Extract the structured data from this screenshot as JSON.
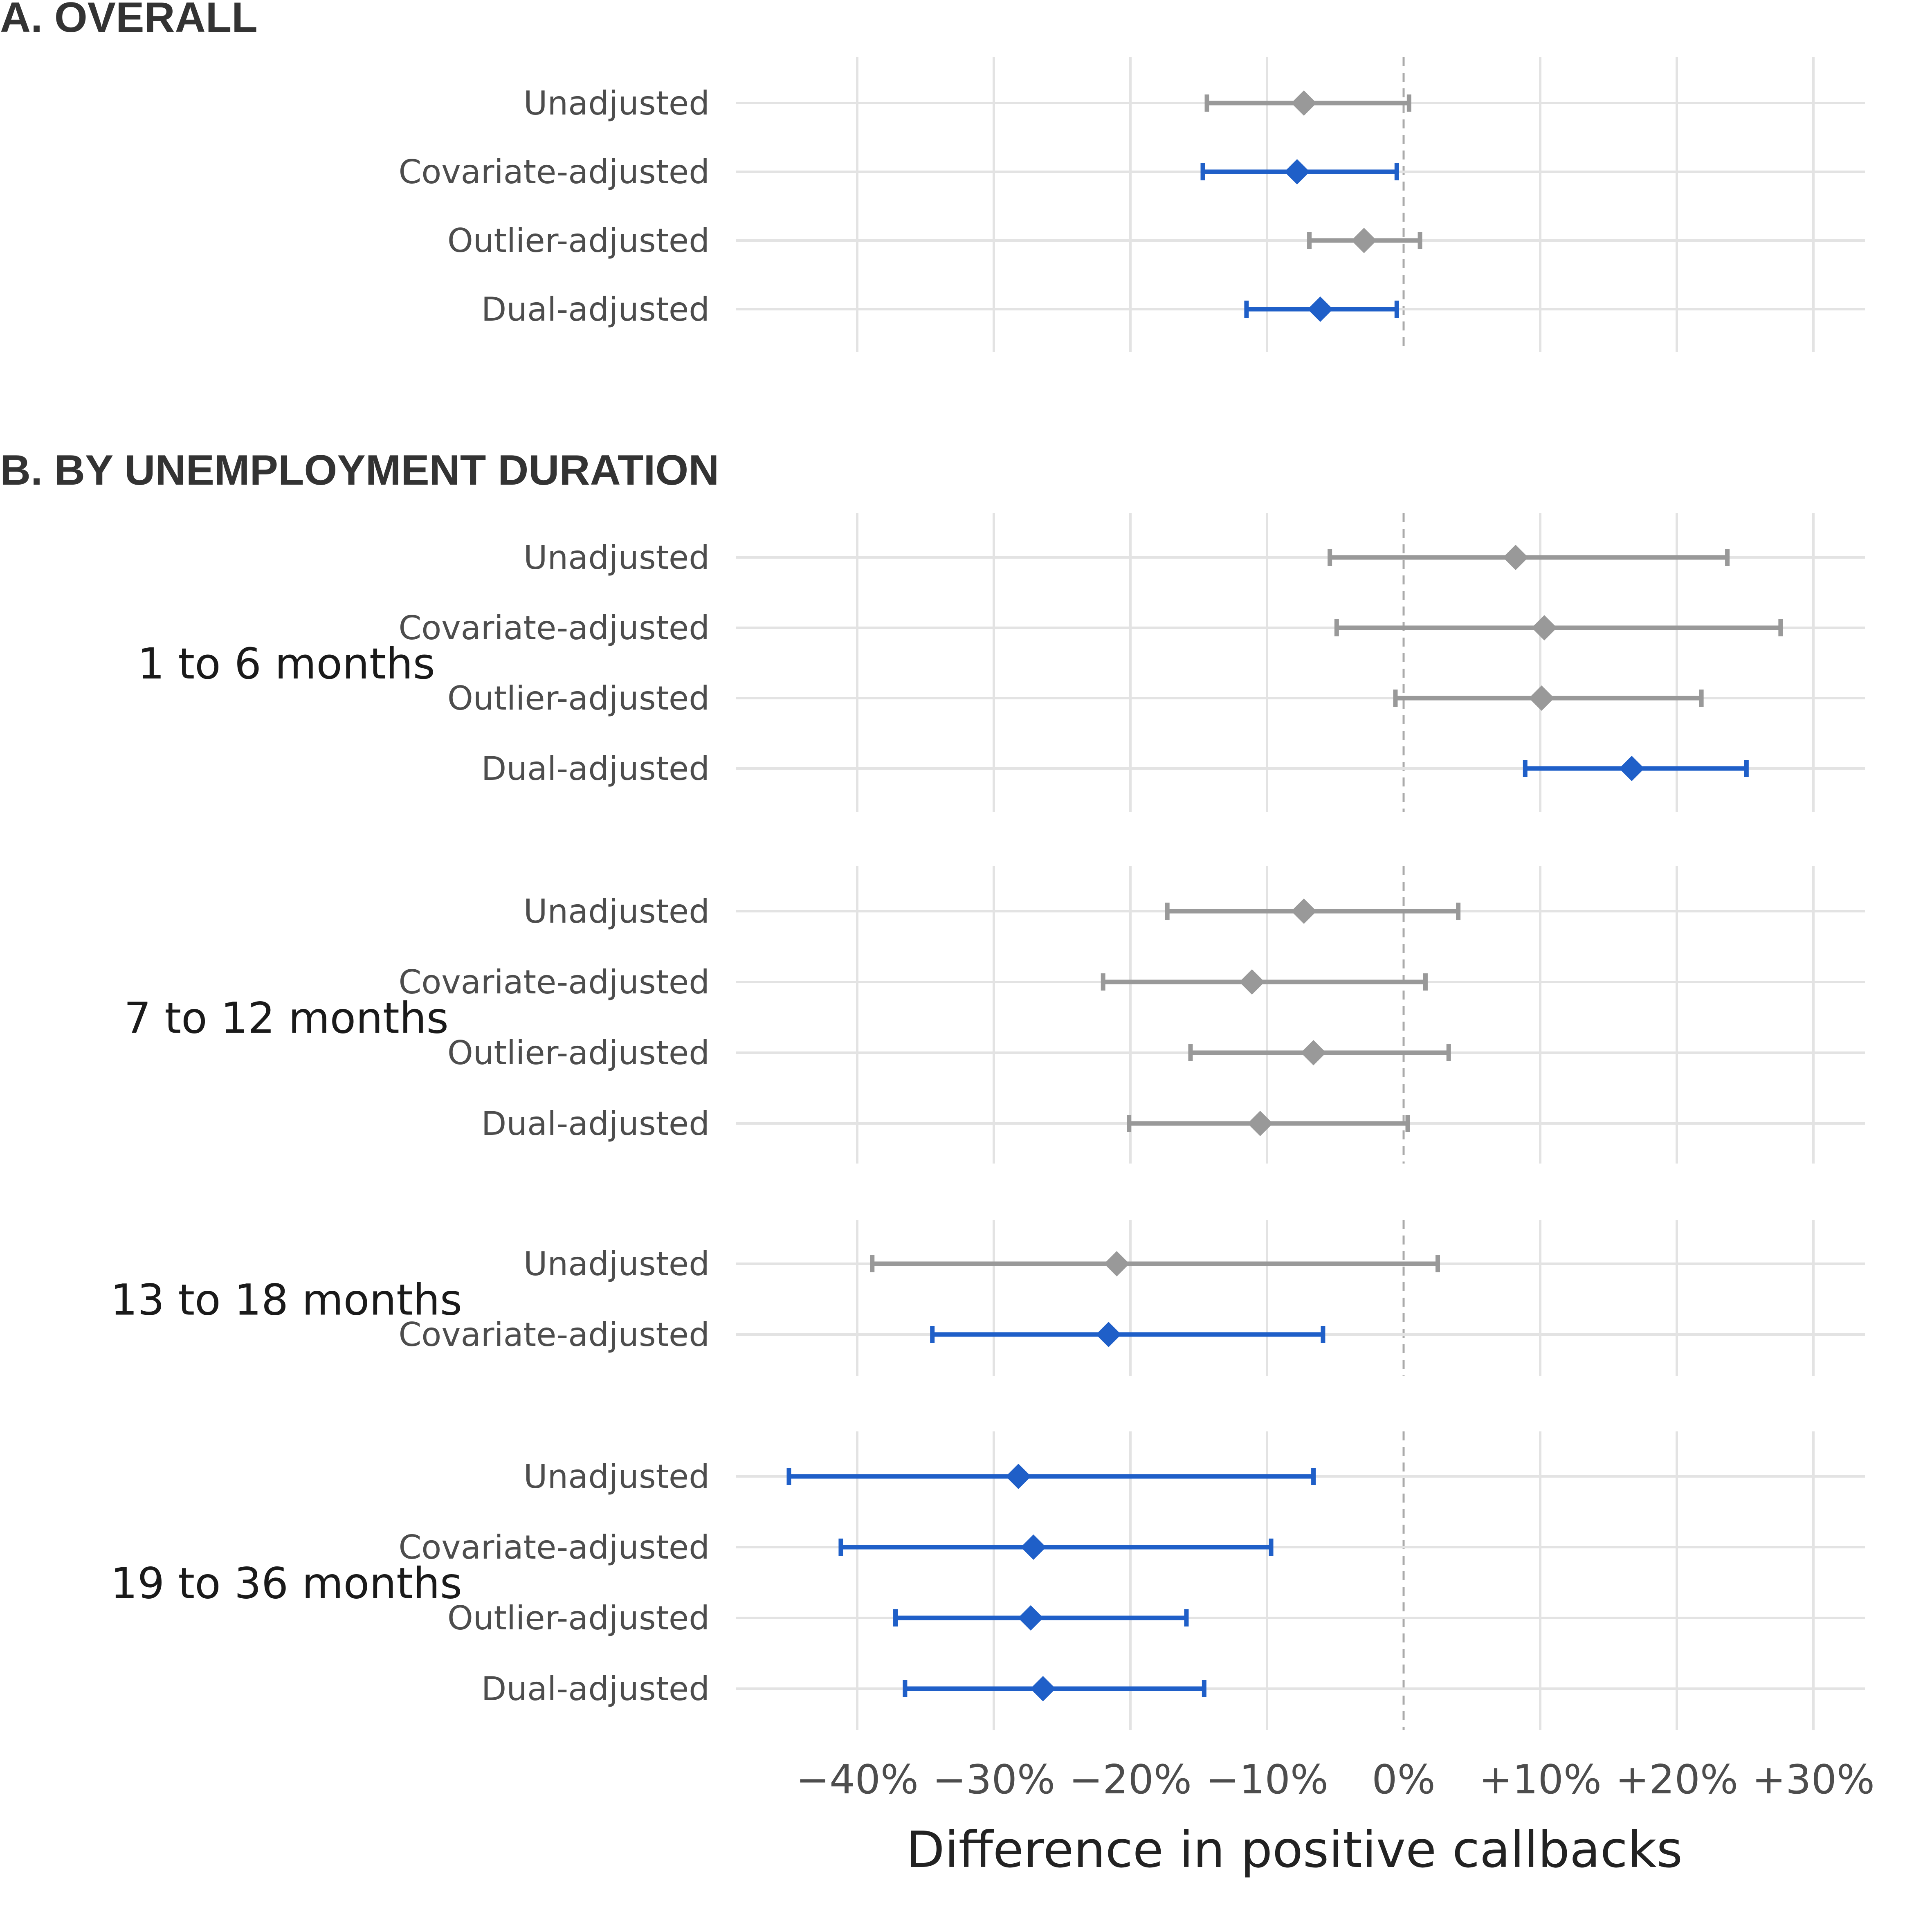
{
  "chart_data": {
    "type": "forest",
    "xlabel": "Difference in positive callbacks",
    "xlim": [
      -49,
      34
    ],
    "x_ticks": [
      -40,
      -30,
      -20,
      -10,
      0,
      10,
      20,
      30
    ],
    "x_tick_labels": [
      "−40%",
      "−30%",
      "−20%",
      "−10%",
      "0%",
      "+10%",
      "+20%",
      "+30%"
    ],
    "reference_line": 0,
    "grid": true,
    "colors": {
      "significant": "#1f5fc8",
      "not_significant": "#999999",
      "grid": "#e3e3e3",
      "reference": "#aaaaaa"
    },
    "sections": [
      {
        "title": "A. OVERALL",
        "panels": [
          {
            "group": "",
            "rows": [
              {
                "label": "Unadjusted",
                "estimate": -7.3,
                "low": -14.4,
                "high": 0.4,
                "significant": false
              },
              {
                "label": "Covariate-adjusted",
                "estimate": -7.8,
                "low": -14.7,
                "high": -0.5,
                "significant": true
              },
              {
                "label": "Outlier-adjusted",
                "estimate": -2.9,
                "low": -6.9,
                "high": 1.2,
                "significant": false
              },
              {
                "label": "Dual-adjusted",
                "estimate": -6.1,
                "low": -11.5,
                "high": -0.5,
                "significant": true
              }
            ]
          }
        ]
      },
      {
        "title": "B. BY UNEMPLOYMENT DURATION",
        "panels": [
          {
            "group": "1 to 6 months",
            "rows": [
              {
                "label": "Unadjusted",
                "estimate": 8.2,
                "low": -5.4,
                "high": 23.7,
                "significant": false
              },
              {
                "label": "Covariate-adjusted",
                "estimate": 10.3,
                "low": -4.9,
                "high": 27.6,
                "significant": false
              },
              {
                "label": "Outlier-adjusted",
                "estimate": 10.1,
                "low": -0.6,
                "high": 21.8,
                "significant": false
              },
              {
                "label": "Dual-adjusted",
                "estimate": 16.7,
                "low": 8.9,
                "high": 25.1,
                "significant": true
              }
            ]
          },
          {
            "group": "7 to 12 months",
            "rows": [
              {
                "label": "Unadjusted",
                "estimate": -7.3,
                "low": -17.3,
                "high": 4.0,
                "significant": false
              },
              {
                "label": "Covariate-adjusted",
                "estimate": -11.1,
                "low": -22.0,
                "high": 1.6,
                "significant": false
              },
              {
                "label": "Outlier-adjusted",
                "estimate": -6.6,
                "low": -15.6,
                "high": 3.3,
                "significant": false
              },
              {
                "label": "Dual-adjusted",
                "estimate": -10.5,
                "low": -20.1,
                "high": 0.3,
                "significant": false
              }
            ]
          },
          {
            "group": "13 to 18 months",
            "rows": [
              {
                "label": "Unadjusted",
                "estimate": -21.0,
                "low": -38.9,
                "high": 2.5,
                "significant": false
              },
              {
                "label": "Covariate-adjusted",
                "estimate": -21.6,
                "low": -34.5,
                "high": -5.9,
                "significant": true
              }
            ]
          },
          {
            "group": "19 to 36 months",
            "rows": [
              {
                "label": "Unadjusted",
                "estimate": -28.2,
                "low": -45.0,
                "high": -6.6,
                "significant": true
              },
              {
                "label": "Covariate-adjusted",
                "estimate": -27.1,
                "low": -41.2,
                "high": -9.7,
                "significant": true
              },
              {
                "label": "Outlier-adjusted",
                "estimate": -27.3,
                "low": -37.2,
                "high": -15.9,
                "significant": true
              },
              {
                "label": "Dual-adjusted",
                "estimate": -26.4,
                "low": -36.5,
                "high": -14.6,
                "significant": true
              }
            ]
          }
        ]
      }
    ]
  }
}
